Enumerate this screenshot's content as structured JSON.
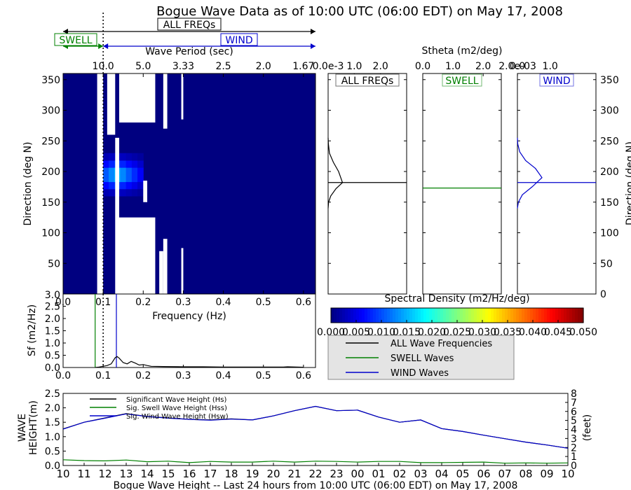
{
  "title": "Bogue Wave Data as of 10:00 UTC (06:00 EDT) on May 17, 2008",
  "colors": {
    "all": "#000000",
    "swell": "#008000",
    "wind": "#0000cc",
    "spectrum_bg": "#000080"
  },
  "period_bar": {
    "all_label": "ALL FREQs",
    "swell_label": "SWELL",
    "wind_label": "WIND",
    "divider_freq": 0.1
  },
  "chart_data": [
    {
      "id": "spectrum",
      "type": "heatmap",
      "xlabel_top": "Wave Period (sec)",
      "top_ticks": [
        "10.0",
        "5.0",
        "3.33",
        "2.5",
        "2.0",
        "1.67"
      ],
      "top_tick_freqs": [
        0.1,
        0.2,
        0.3,
        0.4,
        0.5,
        0.6
      ],
      "xlabel": "Frequency (Hz)",
      "ylabel": "Direction (deg N)",
      "xlim": [
        0.0,
        0.63
      ],
      "ylim": [
        0,
        360
      ],
      "xticks": [
        "0.0",
        "0.1",
        "0.2",
        "0.3",
        "0.4",
        "0.5",
        "0.6"
      ],
      "yticks": [
        "50",
        "100",
        "150",
        "200",
        "250",
        "300",
        "350"
      ],
      "corner_label": "3.0",
      "colorbar": {
        "label": "Spectral Density (m2/Hz/deg)",
        "ticks": [
          "0.000",
          "0.005",
          "0.010",
          "0.015",
          "0.020",
          "0.025",
          "0.030",
          "0.035",
          "0.040",
          "0.045",
          "0.050"
        ],
        "range": [
          0.0,
          0.05
        ]
      },
      "bright_streak": {
        "freq_range": [
          0.085,
          0.2
        ],
        "dir_range": [
          160,
          230
        ],
        "value": 0.018
      },
      "white_gaps": [
        {
          "freq": [
            0.085,
            0.1
          ],
          "dir_lo": 0,
          "dir_hi": 360
        },
        {
          "freq": [
            0.11,
            0.13
          ],
          "dir_lo": 260,
          "dir_hi": 360
        },
        {
          "freq": [
            0.13,
            0.14
          ],
          "dir_lo": 0,
          "dir_hi": 255
        },
        {
          "freq": [
            0.14,
            0.23
          ],
          "dir_lo": 0,
          "dir_hi": 125
        },
        {
          "freq": [
            0.14,
            0.23
          ],
          "dir_lo": 280,
          "dir_hi": 360
        },
        {
          "freq": [
            0.2,
            0.21
          ],
          "dir_lo": 150,
          "dir_hi": 185
        },
        {
          "freq": [
            0.24,
            0.25
          ],
          "dir_lo": 0,
          "dir_hi": 70
        },
        {
          "freq": [
            0.25,
            0.26
          ],
          "dir_lo": 270,
          "dir_hi": 360
        },
        {
          "freq": [
            0.25,
            0.26
          ],
          "dir_lo": 0,
          "dir_hi": 90
        },
        {
          "freq": [
            0.295,
            0.3
          ],
          "dir_lo": 0,
          "dir_hi": 75
        },
        {
          "freq": [
            0.295,
            0.3
          ],
          "dir_lo": 285,
          "dir_hi": 360
        }
      ]
    },
    {
      "id": "stheta_all",
      "type": "line",
      "panel_label": "ALL FREQs",
      "xlim": [
        0.0,
        3.0
      ],
      "xticks": [
        "0.0e-3",
        "1.0",
        "2.0"
      ],
      "ylim": [
        0,
        360
      ],
      "peak_dir": 182,
      "mean_dir": 182,
      "series_x": [
        0,
        0.02,
        0.1,
        0.3,
        0.55,
        0.4,
        0.2,
        0.05,
        0.01,
        0
      ],
      "series_y": [
        140,
        150,
        160,
        172,
        182,
        200,
        215,
        230,
        245,
        255
      ]
    },
    {
      "id": "stheta_swell",
      "type": "line",
      "panel_label": "SWELL",
      "xlabel_top": "Stheta (m2/deg)",
      "xlim": [
        0.0,
        2.6
      ],
      "xticks": [
        "0.0",
        "1.0",
        "2.0"
      ],
      "ylim": [
        0,
        360
      ],
      "mean_dir": 173
    },
    {
      "id": "stheta_wind",
      "type": "line",
      "panel_label": "WIND",
      "xlim": [
        0.0,
        2.4
      ],
      "xticks": [
        "0.0",
        "1.0",
        "2.0e-03"
      ],
      "ylim": [
        0,
        360
      ],
      "yticks_right": [
        "0",
        "50",
        "100",
        "150",
        "200",
        "250",
        "300",
        "350"
      ],
      "ylabel_right": "Direction (deg N)",
      "mean_dir": 182,
      "series_x": [
        0,
        0.03,
        0.15,
        0.45,
        0.75,
        0.55,
        0.25,
        0.07,
        0.01,
        0
      ],
      "series_y": [
        140,
        150,
        162,
        175,
        190,
        205,
        218,
        232,
        245,
        255
      ]
    },
    {
      "id": "freq_spectrum",
      "type": "line",
      "xlabel": "",
      "ylabel": "Sf (m2/Hz)",
      "xlim": [
        0.0,
        0.63
      ],
      "ylim": [
        0.0,
        3.0
      ],
      "xticks": [
        "0.0",
        "0.1",
        "0.2",
        "0.3",
        "0.4",
        "0.5",
        "0.6"
      ],
      "yticks": [
        "0.0",
        "0.5",
        "1.0",
        "1.5",
        "2.0",
        "2.5",
        "3.0"
      ],
      "swell_line": 0.08,
      "wind_line": 0.133,
      "divider": 0.1,
      "series_x": [
        0.08,
        0.09,
        0.1,
        0.11,
        0.12,
        0.13,
        0.135,
        0.14,
        0.15,
        0.16,
        0.17,
        0.18,
        0.19,
        0.2,
        0.21,
        0.22,
        0.25,
        0.3,
        0.35,
        0.4,
        0.45,
        0.5,
        0.55,
        0.56,
        0.6
      ],
      "series_y": [
        0.0,
        0.02,
        0.05,
        0.08,
        0.15,
        0.4,
        0.45,
        0.38,
        0.2,
        0.15,
        0.25,
        0.18,
        0.1,
        0.12,
        0.08,
        0.05,
        0.04,
        0.03,
        0.03,
        0.02,
        0.02,
        0.02,
        0.02,
        0.03,
        0.01
      ]
    },
    {
      "id": "wave_height",
      "type": "line",
      "xlabel": "Bogue Wave Height -- Last 24 hours from 10:00 UTC (06:00 EDT) on May 17, 2008",
      "ylabel": "WAVE HEIGHT(m)",
      "ylabel_lines": [
        "WAVE",
        "HEIGHT(m)"
      ],
      "ylabel_right": "(feet)",
      "ylim": [
        0.0,
        2.5
      ],
      "ylim_feet": [
        0,
        8
      ],
      "yticks": [
        "0.0",
        "0.5",
        "1.0",
        "1.5",
        "2.0",
        "2.5"
      ],
      "yticks_right": [
        "0",
        "1",
        "2",
        "3",
        "4",
        "5",
        "6",
        "7",
        "8"
      ],
      "categories": [
        "10",
        "11",
        "12",
        "13",
        "14",
        "15",
        "16",
        "17",
        "18",
        "19",
        "20",
        "21",
        "22",
        "23",
        "00",
        "01",
        "02",
        "03",
        "04",
        "05",
        "06",
        "07",
        "08",
        "09",
        "10"
      ],
      "series": [
        {
          "name": "Significant Wave Height (Hs)",
          "color": "#000000",
          "values": [
            1.27,
            1.5,
            1.65,
            1.8,
            1.7,
            1.65,
            1.6,
            1.58,
            1.62,
            1.58,
            1.72,
            1.9,
            2.05,
            1.9,
            1.92,
            1.68,
            1.5,
            1.58,
            1.28,
            1.18,
            1.05,
            0.93,
            0.81,
            0.71,
            0.6
          ]
        },
        {
          "name": "Sig. Swell Wave Height (Hss)",
          "color": "#008000",
          "values": [
            0.2,
            0.17,
            0.16,
            0.19,
            0.13,
            0.15,
            0.1,
            0.14,
            0.12,
            0.12,
            0.15,
            0.12,
            0.15,
            0.14,
            0.12,
            0.14,
            0.14,
            0.1,
            0.1,
            0.11,
            0.12,
            0.08,
            0.09,
            0.08,
            0.09
          ]
        },
        {
          "name": "Sig. Wind Wave Height (Hsw)",
          "color": "#0000cc",
          "values": [
            1.26,
            1.5,
            1.64,
            1.79,
            1.7,
            1.64,
            1.6,
            1.57,
            1.61,
            1.58,
            1.72,
            1.9,
            2.05,
            1.9,
            1.92,
            1.68,
            1.5,
            1.58,
            1.28,
            1.18,
            1.05,
            0.93,
            0.81,
            0.71,
            0.6
          ]
        }
      ],
      "legend": "top-left"
    }
  ],
  "legend": {
    "items": [
      {
        "label": "ALL Wave Frequencies",
        "color": "#000000"
      },
      {
        "label": "SWELL Waves",
        "color": "#008000"
      },
      {
        "label": "WIND Waves",
        "color": "#0000cc"
      }
    ]
  }
}
